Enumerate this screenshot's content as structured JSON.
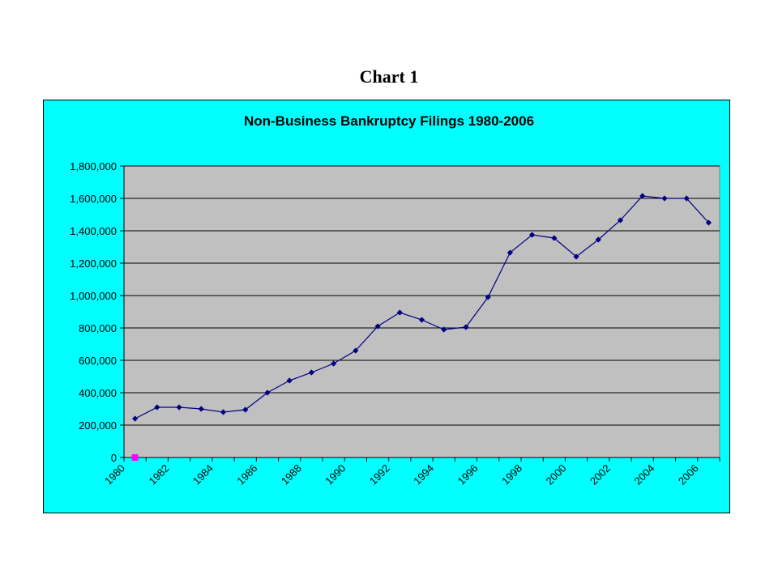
{
  "page": {
    "heading": "Chart 1"
  },
  "colors": {
    "frame_background": "#00ffff",
    "plot_background": "#c0c0c0",
    "series_line": "#000080",
    "marker": "#000080",
    "extra_marker": "#ff00ff",
    "gridline": "#000000"
  },
  "chart_data": {
    "type": "line",
    "title": "Non-Business Bankruptcy Filings 1980-2006",
    "xlabel": "",
    "ylabel": "",
    "grid": true,
    "legend": "none",
    "ylim": [
      0,
      1800000
    ],
    "y_ticks": [
      "0",
      "200,000",
      "400,000",
      "600,000",
      "800,000",
      "1,000,000",
      "1,200,000",
      "1,400,000",
      "1,600,000",
      "1,800,000"
    ],
    "x_ticks": [
      "1980",
      "1982",
      "1984",
      "1986",
      "1988",
      "1990",
      "1992",
      "1994",
      "1996",
      "1998",
      "2000",
      "2002",
      "2004",
      "2006"
    ],
    "series": [
      {
        "x": [
          1980,
          1981,
          1982,
          1983,
          1984,
          1985,
          1986,
          1987,
          1988,
          1989,
          1990,
          1991,
          1992,
          1993,
          1994,
          1995,
          1996,
          1997,
          1998,
          1999,
          2000,
          2001,
          2002,
          2003,
          2004,
          2005,
          2006
        ],
        "values": [
          240000,
          310000,
          310000,
          300000,
          280000,
          295000,
          400000,
          475000,
          525000,
          580000,
          660000,
          810000,
          895000,
          850000,
          790000,
          805000,
          990000,
          1265000,
          1375000,
          1355000,
          1240000,
          1345000,
          1465000,
          1615000,
          1600000,
          1600000,
          1450000
        ]
      }
    ],
    "extra_point": {
      "x": 1980,
      "value": 0
    }
  }
}
